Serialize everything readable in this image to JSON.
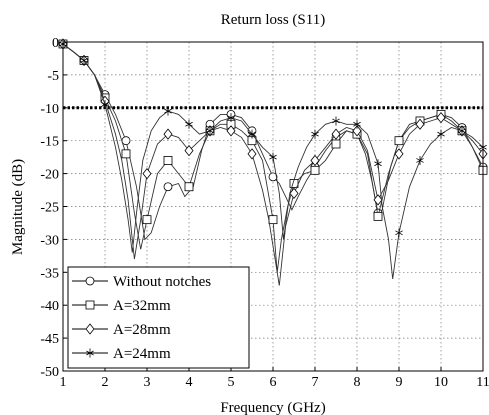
{
  "chart_data": {
    "type": "line",
    "title": "Return loss (S11)",
    "xlabel": "Frequency (GHz)",
    "ylabel": "Magnitude (dB)",
    "xlim": [
      1,
      11
    ],
    "ylim": [
      -50,
      0
    ],
    "xticks": [
      1,
      2,
      3,
      4,
      5,
      6,
      7,
      8,
      9,
      10,
      11
    ],
    "yticks": [
      0,
      -5,
      -10,
      -15,
      -20,
      -25,
      -30,
      -35,
      -40,
      -45,
      -50
    ],
    "grid": true,
    "reference_line": {
      "y": -10,
      "style": "dotted"
    },
    "legend_position": "bottom-left",
    "series": [
      {
        "name": "Without notches",
        "marker": "circle",
        "x": [
          1.0,
          1.25,
          1.5,
          1.75,
          2.0,
          2.25,
          2.5,
          2.75,
          2.95,
          3.1,
          3.3,
          3.5,
          3.75,
          3.9,
          4.1,
          4.3,
          4.5,
          4.75,
          5.0,
          5.25,
          5.5,
          5.75,
          6.0,
          6.15,
          6.3,
          6.45,
          6.6,
          6.8,
          7.0,
          7.25,
          7.5,
          7.75,
          8.0,
          8.2,
          8.35,
          8.5,
          8.6,
          8.8,
          9.0,
          9.25,
          9.5,
          9.75,
          10.0,
          10.25,
          10.5,
          10.75,
          11.0
        ],
        "y": [
          -0.3,
          -1.5,
          -2.8,
          -5.0,
          -8.0,
          -11.0,
          -15.0,
          -22.0,
          -30.0,
          -29.0,
          -25.0,
          -22.0,
          -21.5,
          -23.5,
          -22.0,
          -16.5,
          -12.5,
          -11.0,
          -11.0,
          -11.5,
          -13.5,
          -17.0,
          -20.5,
          -21.5,
          -23.5,
          -25.5,
          -23.5,
          -21.0,
          -19.0,
          -16.5,
          -14.5,
          -13.5,
          -14.0,
          -17.0,
          -21.0,
          -26.0,
          -25.5,
          -19.0,
          -15.0,
          -12.5,
          -12.0,
          -11.5,
          -11.0,
          -11.5,
          -13.0,
          -16.0,
          -19.0
        ]
      },
      {
        "name": "A=32mm",
        "marker": "square",
        "x": [
          1.0,
          1.25,
          1.5,
          1.75,
          2.0,
          2.25,
          2.5,
          2.7,
          2.85,
          3.0,
          3.25,
          3.5,
          3.75,
          4.0,
          4.25,
          4.5,
          4.75,
          5.0,
          5.25,
          5.5,
          5.75,
          6.0,
          6.1,
          6.2,
          6.35,
          6.5,
          6.75,
          7.0,
          7.25,
          7.5,
          7.75,
          8.0,
          8.25,
          8.5,
          8.75,
          9.0,
          9.25,
          9.5,
          9.75,
          10.0,
          10.25,
          10.5,
          10.75,
          11.0
        ],
        "y": [
          -0.3,
          -1.5,
          -2.8,
          -5.0,
          -8.5,
          -12.0,
          -17.0,
          -26.0,
          -31.5,
          -27.0,
          -20.0,
          -18.0,
          -20.0,
          -22.0,
          -17.0,
          -13.5,
          -12.5,
          -12.5,
          -13.5,
          -15.0,
          -18.0,
          -27.0,
          -35.0,
          -30.0,
          -25.0,
          -21.5,
          -20.0,
          -19.5,
          -18.0,
          -15.5,
          -13.5,
          -14.0,
          -17.0,
          -26.5,
          -20.0,
          -15.0,
          -13.0,
          -12.0,
          -11.5,
          -11.0,
          -12.0,
          -13.5,
          -16.0,
          -19.5
        ]
      },
      {
        "name": "A=28mm",
        "marker": "diamond",
        "x": [
          1.0,
          1.25,
          1.5,
          1.75,
          2.0,
          2.25,
          2.4,
          2.55,
          2.7,
          2.85,
          3.0,
          3.25,
          3.5,
          3.75,
          4.0,
          4.25,
          4.5,
          4.75,
          5.0,
          5.25,
          5.5,
          5.75,
          5.9,
          6.05,
          6.15,
          6.3,
          6.5,
          6.75,
          7.0,
          7.25,
          7.5,
          7.75,
          8.0,
          8.25,
          8.5,
          8.75,
          9.0,
          9.25,
          9.5,
          9.75,
          10.0,
          10.25,
          10.5,
          10.75,
          11.0
        ],
        "y": [
          -0.3,
          -1.5,
          -2.8,
          -5.0,
          -9.0,
          -14.0,
          -18.0,
          -24.0,
          -33.0,
          -27.0,
          -20.0,
          -15.5,
          -14.0,
          -14.5,
          -16.5,
          -15.0,
          -13.5,
          -13.0,
          -13.5,
          -14.5,
          -17.0,
          -22.5,
          -27.0,
          -33.0,
          -37.0,
          -28.0,
          -23.0,
          -19.5,
          -18.0,
          -16.0,
          -14.0,
          -13.0,
          -13.5,
          -16.5,
          -24.0,
          -21.0,
          -17.0,
          -14.0,
          -12.5,
          -12.0,
          -11.5,
          -12.5,
          -13.5,
          -15.0,
          -17.0
        ]
      },
      {
        "name": "A=24mm",
        "marker": "asterisk",
        "x": [
          1.0,
          1.25,
          1.5,
          1.75,
          2.0,
          2.25,
          2.4,
          2.55,
          2.65,
          2.75,
          2.9,
          3.1,
          3.3,
          3.5,
          3.75,
          4.0,
          4.25,
          4.5,
          4.75,
          5.0,
          5.25,
          5.5,
          5.75,
          6.0,
          6.15,
          6.25,
          6.4,
          6.6,
          6.8,
          7.0,
          7.25,
          7.5,
          7.75,
          8.0,
          8.25,
          8.5,
          8.6,
          8.75,
          8.85,
          9.0,
          9.25,
          9.5,
          9.75,
          10.0,
          10.25,
          10.5,
          10.75,
          11.0
        ],
        "y": [
          -0.3,
          -1.5,
          -2.8,
          -5.0,
          -9.5,
          -16.0,
          -21.0,
          -27.0,
          -32.0,
          -26.0,
          -18.0,
          -13.5,
          -11.5,
          -10.5,
          -11.0,
          -12.5,
          -14.0,
          -13.5,
          -12.0,
          -11.5,
          -12.0,
          -14.0,
          -16.0,
          -17.5,
          -23.0,
          -30.0,
          -23.0,
          -19.0,
          -16.0,
          -14.0,
          -12.5,
          -12.0,
          -12.5,
          -12.5,
          -14.0,
          -18.5,
          -25.0,
          -30.0,
          -36.0,
          -29.0,
          -22.0,
          -18.0,
          -15.5,
          -14.0,
          -13.0,
          -13.5,
          -14.5,
          -16.0
        ]
      }
    ]
  }
}
